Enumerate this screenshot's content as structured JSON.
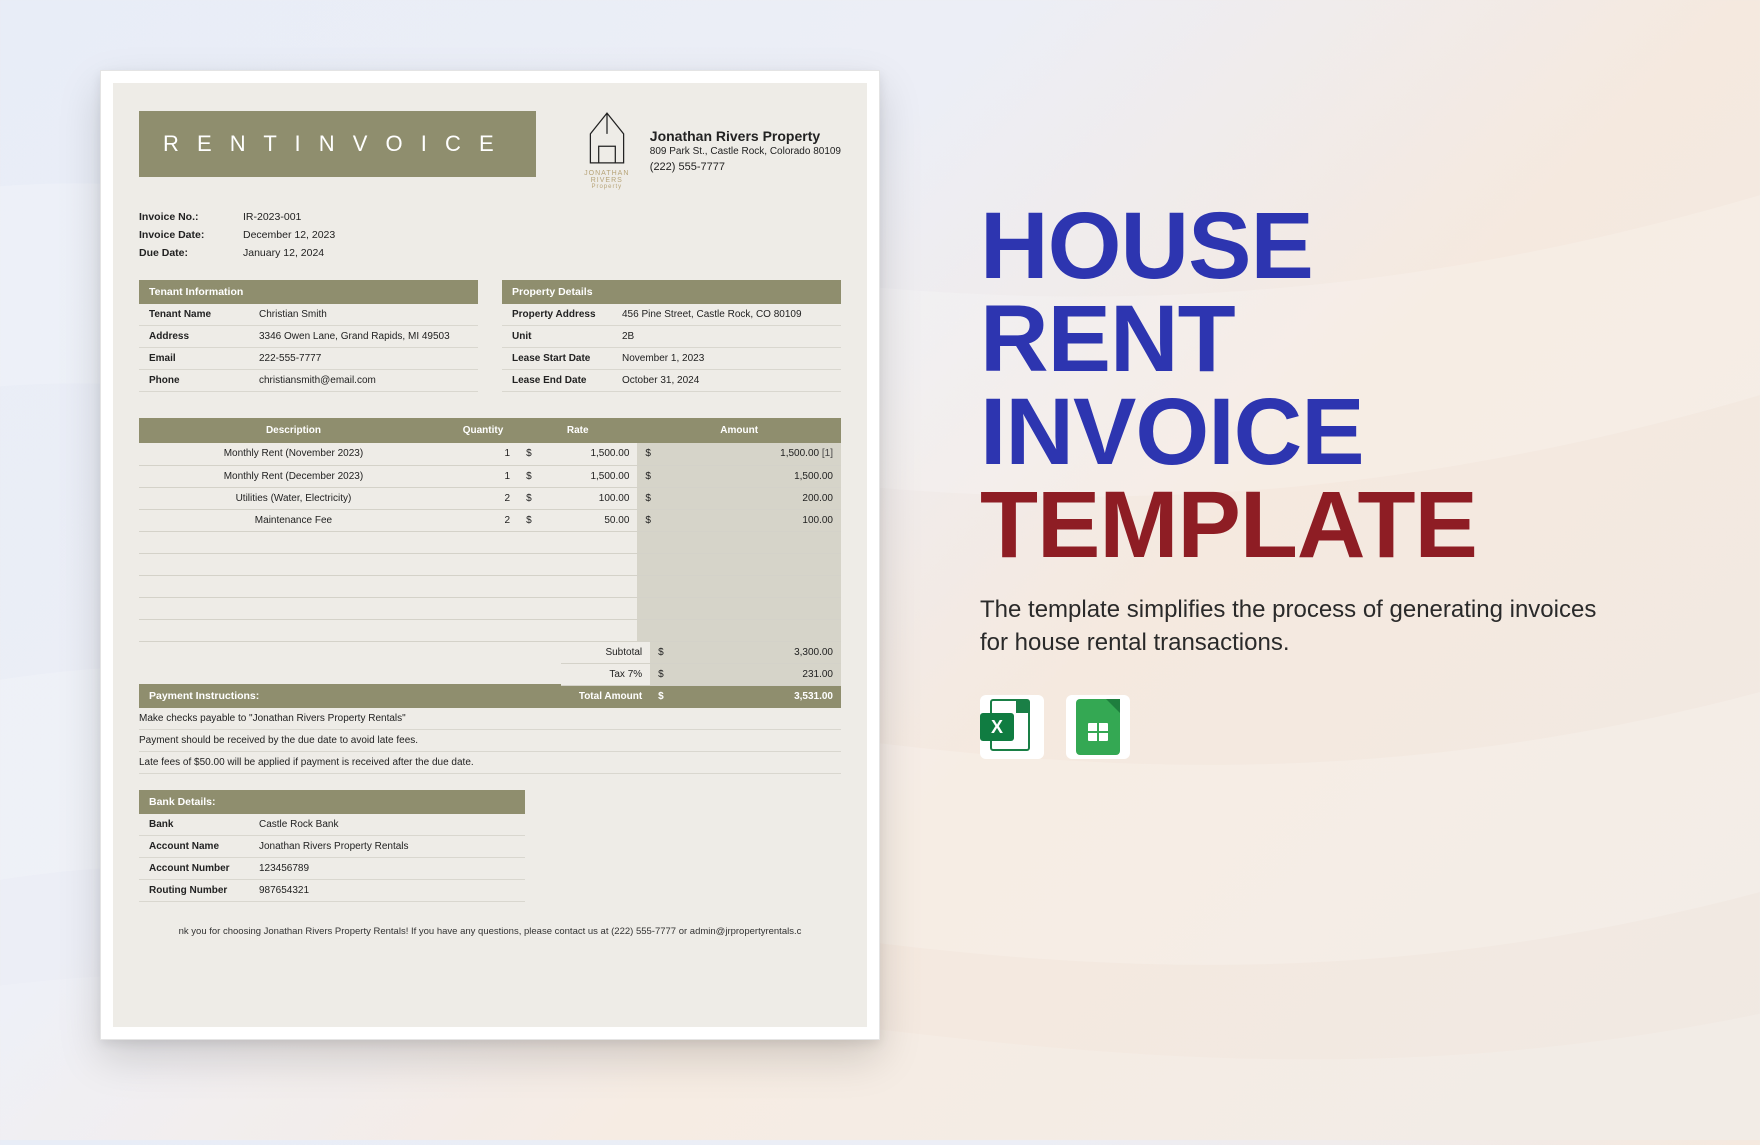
{
  "colors": {
    "olive": "#8f8e6e",
    "paper": "#eeece7",
    "shade": "#d6d4c9",
    "blue": "#2d35b0",
    "red": "#8e1d24"
  },
  "invoice": {
    "title": "R E N T   I N V O I C E",
    "company": {
      "name": "Jonathan Rivers Property",
      "address": "809 Park St., Castle Rock, Colorado 80109",
      "phone": "(222) 555-7777",
      "logo_caption": "JONATHAN RIVERS",
      "logo_sub": "Property"
    },
    "meta": [
      {
        "label": "Invoice No.:",
        "value": "IR-2023-001"
      },
      {
        "label": "Invoice Date:",
        "value": "December 12, 2023"
      },
      {
        "label": "Due Date:",
        "value": "January 12, 2024"
      }
    ],
    "tenant": {
      "header": "Tenant Information",
      "rows": [
        {
          "label": "Tenant Name",
          "value": "Christian Smith"
        },
        {
          "label": "Address",
          "value": "3346 Owen Lane, Grand Rapids, MI 49503"
        },
        {
          "label": "Email",
          "value": "222-555-7777"
        },
        {
          "label": "Phone",
          "value": "christiansmith@email.com"
        }
      ]
    },
    "property": {
      "header": "Property Details",
      "rows": [
        {
          "label": "Property Address",
          "value": "456 Pine Street, Castle Rock, CO 80109"
        },
        {
          "label": "Unit",
          "value": "2B"
        },
        {
          "label": "Lease Start Date",
          "value": "November 1, 2023"
        },
        {
          "label": "Lease End Date",
          "value": "October 31, 2024"
        }
      ]
    },
    "columns": {
      "desc": "Description",
      "qty": "Quantity",
      "rate": "Rate",
      "amount": "Amount"
    },
    "lines": [
      {
        "desc": "Monthly Rent (November 2023)",
        "qty": "1",
        "rate": "1,500.00",
        "amount": "1,500.00",
        "annot": "[1]"
      },
      {
        "desc": "Monthly Rent (December 2023)",
        "qty": "1",
        "rate": "1,500.00",
        "amount": "1,500.00",
        "annot": ""
      },
      {
        "desc": "Utilities (Water, Electricity)",
        "qty": "2",
        "rate": "100.00",
        "amount": "200.00",
        "annot": ""
      },
      {
        "desc": "Maintenance Fee",
        "qty": "2",
        "rate": "50.00",
        "amount": "100.00",
        "annot": ""
      }
    ],
    "empty_rows": 5,
    "subtotal_label": "Subtotal",
    "subtotal": "3,300.00",
    "tax_label": "Tax   7%",
    "tax": "231.00",
    "total_label": "Total Amount",
    "total": "3,531.00",
    "currency": "$",
    "pay_header": "Payment Instructions:",
    "pay_lines": [
      "Make checks payable to \"Jonathan Rivers Property Rentals\"",
      "Payment should be received by the due date to avoid late fees.",
      "Late fees of $50.00 will be applied if payment is received after the due date."
    ],
    "bank_header": "Bank Details:",
    "bank": [
      {
        "label": "Bank",
        "value": "Castle Rock Bank"
      },
      {
        "label": "Account Name",
        "value": "Jonathan Rivers Property Rentals"
      },
      {
        "label": "Account Number",
        "value": "123456789"
      },
      {
        "label": "Routing Number",
        "value": "987654321"
      }
    ],
    "footer": "nk you for choosing Jonathan Rivers Property Rentals! If you have any questions, please contact us at (222) 555-7777 or admin@jrpropertyrentals.c"
  },
  "promo": {
    "h1": "HOUSE",
    "h2": "RENT",
    "h3": "INVOICE",
    "h4": "TEMPLATE",
    "tagline": "The template simplifies the process of generating invoices for house rental transactions.",
    "excel_letter": "X"
  }
}
